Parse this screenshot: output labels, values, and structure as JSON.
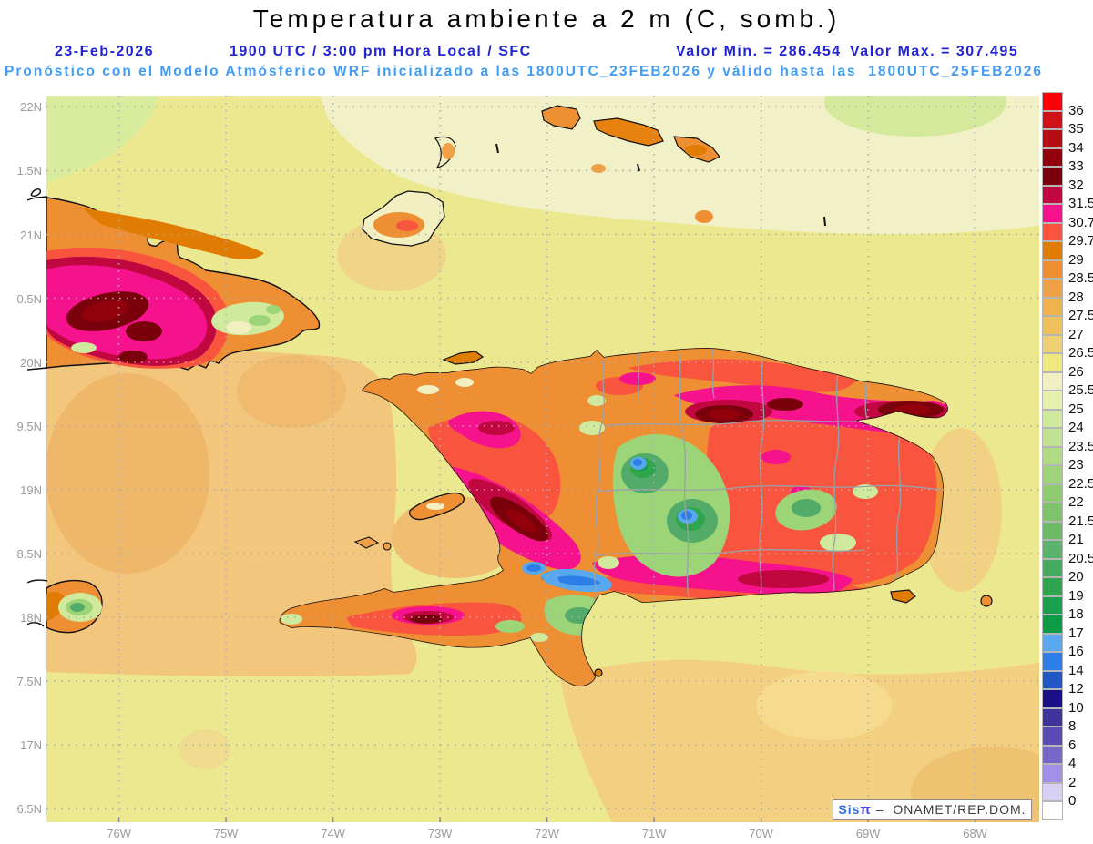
{
  "header": {
    "title": "Temperatura ambiente a 2 m (C, somb.)",
    "line1": {
      "date": "23-Feb-2026",
      "time": "1900 UTC / 3:00 pm Hora Local / SFC",
      "valor_min": "Valor Min. = 286.454",
      "valor_max": "Valor Max. = 307.495"
    },
    "line2": "Pronóstico con el Modelo Atmósferico WRF inicializado a las 1800UTC_23FEB2026 y válido hasta las  1800UTC_25FEB2026"
  },
  "axes": {
    "lat_labels": [
      "22N",
      "1.5N",
      "21N",
      "0.5N",
      "20N",
      "9.5N",
      "19N",
      "8.5N",
      "18N",
      "7.5N",
      "17N",
      "6.5N"
    ],
    "lon_labels": [
      "76W",
      "75W",
      "74W",
      "73W",
      "72W",
      "71W",
      "70W",
      "69W",
      "68W"
    ]
  },
  "colorbar": {
    "labels": [
      "36",
      "35",
      "34",
      "33",
      "32",
      "31.5",
      "30.7",
      "29.7",
      "29",
      "28.5",
      "28",
      "27.5",
      "27",
      "26.5",
      "26",
      "25.5",
      "25",
      "24",
      "23.5",
      "23",
      "22.5",
      "22",
      "21.5",
      "21",
      "20.5",
      "20",
      "19",
      "18",
      "17",
      "16",
      "14",
      "12",
      "10",
      "8",
      "6",
      "4",
      "2",
      "0"
    ],
    "colors": [
      "#fb0007",
      "#cf1118",
      "#b50d13",
      "#91000b",
      "#7a000b",
      "#c1073f",
      "#f5128c",
      "#f9543e",
      "#e07c04",
      "#ee8f33",
      "#f0a047",
      "#f0b14f",
      "#efc05b",
      "#efcf74",
      "#f0e87e",
      "#f2efc0",
      "#e6f0ab",
      "#cfe99d",
      "#bfe391",
      "#afdc82",
      "#9dd477",
      "#8ecc6f",
      "#7ec46a",
      "#6bbb66",
      "#5bb26a",
      "#47ab5e",
      "#2fa64e",
      "#1ba14b",
      "#0d9b45",
      "#5aa9ef",
      "#2e7ee8",
      "#2057c2",
      "#1a1085",
      "#41339c",
      "#5a4cb2",
      "#7866c9",
      "#a28fe8",
      "#d8d0f4",
      "#ffffff"
    ]
  },
  "watermark": {
    "brand": "Sis",
    "pi": "π",
    "rest": " –  ONAMET/REP.DOM."
  },
  "colors": {
    "subtitle_dark_blue": "#2123d4",
    "subtitle_light_blue": "#3f9cf8",
    "axis_gray": "#9b9b9b",
    "gridline": "#a9aeb9",
    "coastline": "#111111",
    "province_border": "#9aa0a8",
    "ocean_yellow": "#ece88f",
    "ocean_cream": "#f2f0c6",
    "ocean_tan": "#f2c67c"
  },
  "chart_data": {
    "type": "filled_contour_map",
    "variable": "Temperatura ambiente a 2 m",
    "units": "C",
    "shading": "somb.",
    "valor_min": 286.454,
    "valor_max": 307.495,
    "datetime": "23-Feb-2026 1900 UTC / 3:00 pm Hora Local / SFC",
    "model": "WRF",
    "init": "1800UTC_23FEB2026",
    "valid": "1800UTC_25FEB2026",
    "lon_ticks": [
      "76W",
      "75W",
      "74W",
      "73W",
      "72W",
      "71W",
      "70W",
      "69W",
      "68W"
    ],
    "lat_ticks": [
      "22N",
      "21.5N",
      "21N",
      "20.5N",
      "20N",
      "19.5N",
      "19N",
      "18.5N",
      "18N",
      "17.5N",
      "17N",
      "16.5N"
    ],
    "scale_labels": [
      36,
      35,
      34,
      33,
      32,
      31.5,
      30.7,
      29.7,
      29,
      28.5,
      28,
      27.5,
      27,
      26.5,
      26,
      25.5,
      25,
      24,
      23.5,
      23,
      22.5,
      22,
      21.5,
      21,
      20.5,
      20,
      19,
      18,
      17,
      16,
      14,
      12,
      10,
      8,
      6,
      4,
      2,
      0
    ],
    "scale_colors": [
      "#fb0007",
      "#cf1118",
      "#b50d13",
      "#91000b",
      "#7a000b",
      "#c1073f",
      "#f5128c",
      "#f9543e",
      "#e07c04",
      "#ee8f33",
      "#f0a047",
      "#f0b14f",
      "#efc05b",
      "#efcf74",
      "#f0e87e",
      "#f2efc0",
      "#e6f0ab",
      "#cfe99d",
      "#bfe391",
      "#afdc82",
      "#9dd477",
      "#8ecc6f",
      "#7ec46a",
      "#6bbb66",
      "#5bb26a",
      "#47ab5e",
      "#2fa64e",
      "#1ba14b",
      "#0d9b45",
      "#5aa9ef",
      "#2e7ee8",
      "#2057c2",
      "#1a1085",
      "#41339c",
      "#5a4cb2",
      "#7866c9",
      "#a28fe8",
      "#d8d0f4",
      "#ffffff"
    ],
    "regions_depicted": [
      "Eastern Cuba",
      "Hispaniola (Haiti / Dominican Republic)",
      "Eastern Jamaica",
      "Great Inagua",
      "Turks and Caicos",
      "Gonave",
      "Tortue",
      "Saona",
      "Mona"
    ]
  }
}
